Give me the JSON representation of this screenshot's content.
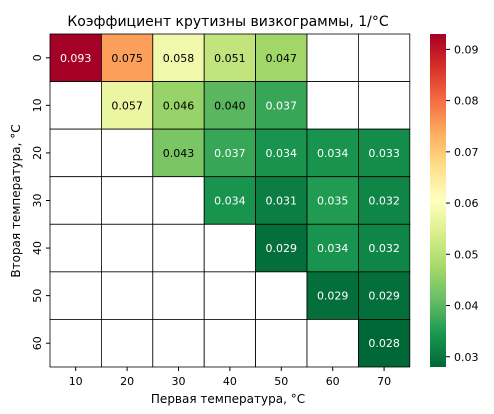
{
  "chart_data": {
    "type": "heatmap",
    "title": "Коэффициент крутизны визкограммы, 1/°C",
    "xlabel": "Первая температура, °C",
    "ylabel": "Вторая температура, °C",
    "x_categories": [
      "10",
      "20",
      "30",
      "40",
      "50",
      "60",
      "70"
    ],
    "y_categories": [
      "0",
      "10",
      "20",
      "30",
      "40",
      "50",
      "60"
    ],
    "values": [
      [
        0.093,
        0.075,
        0.058,
        0.051,
        0.047,
        null,
        null
      ],
      [
        null,
        0.057,
        0.046,
        0.04,
        0.037,
        null,
        null
      ],
      [
        null,
        null,
        0.043,
        0.037,
        0.034,
        0.034,
        0.033
      ],
      [
        null,
        null,
        null,
        0.034,
        0.031,
        0.035,
        0.032
      ],
      [
        null,
        null,
        null,
        null,
        0.029,
        0.034,
        0.032
      ],
      [
        null,
        null,
        null,
        null,
        null,
        0.029,
        0.029
      ],
      [
        null,
        null,
        null,
        null,
        null,
        null,
        0.028
      ]
    ],
    "value_format": "0.000",
    "colormap": "RdYlGn_r",
    "color_range": [
      0.028,
      0.093
    ],
    "colorbar_ticks": [
      "0.03",
      "0.04",
      "0.05",
      "0.06",
      "0.07",
      "0.08",
      "0.09"
    ],
    "colorbar_tick_values": [
      0.03,
      0.04,
      0.05,
      0.06,
      0.07,
      0.08,
      0.09
    ],
    "grid": true,
    "legend": "colorbar-right"
  }
}
